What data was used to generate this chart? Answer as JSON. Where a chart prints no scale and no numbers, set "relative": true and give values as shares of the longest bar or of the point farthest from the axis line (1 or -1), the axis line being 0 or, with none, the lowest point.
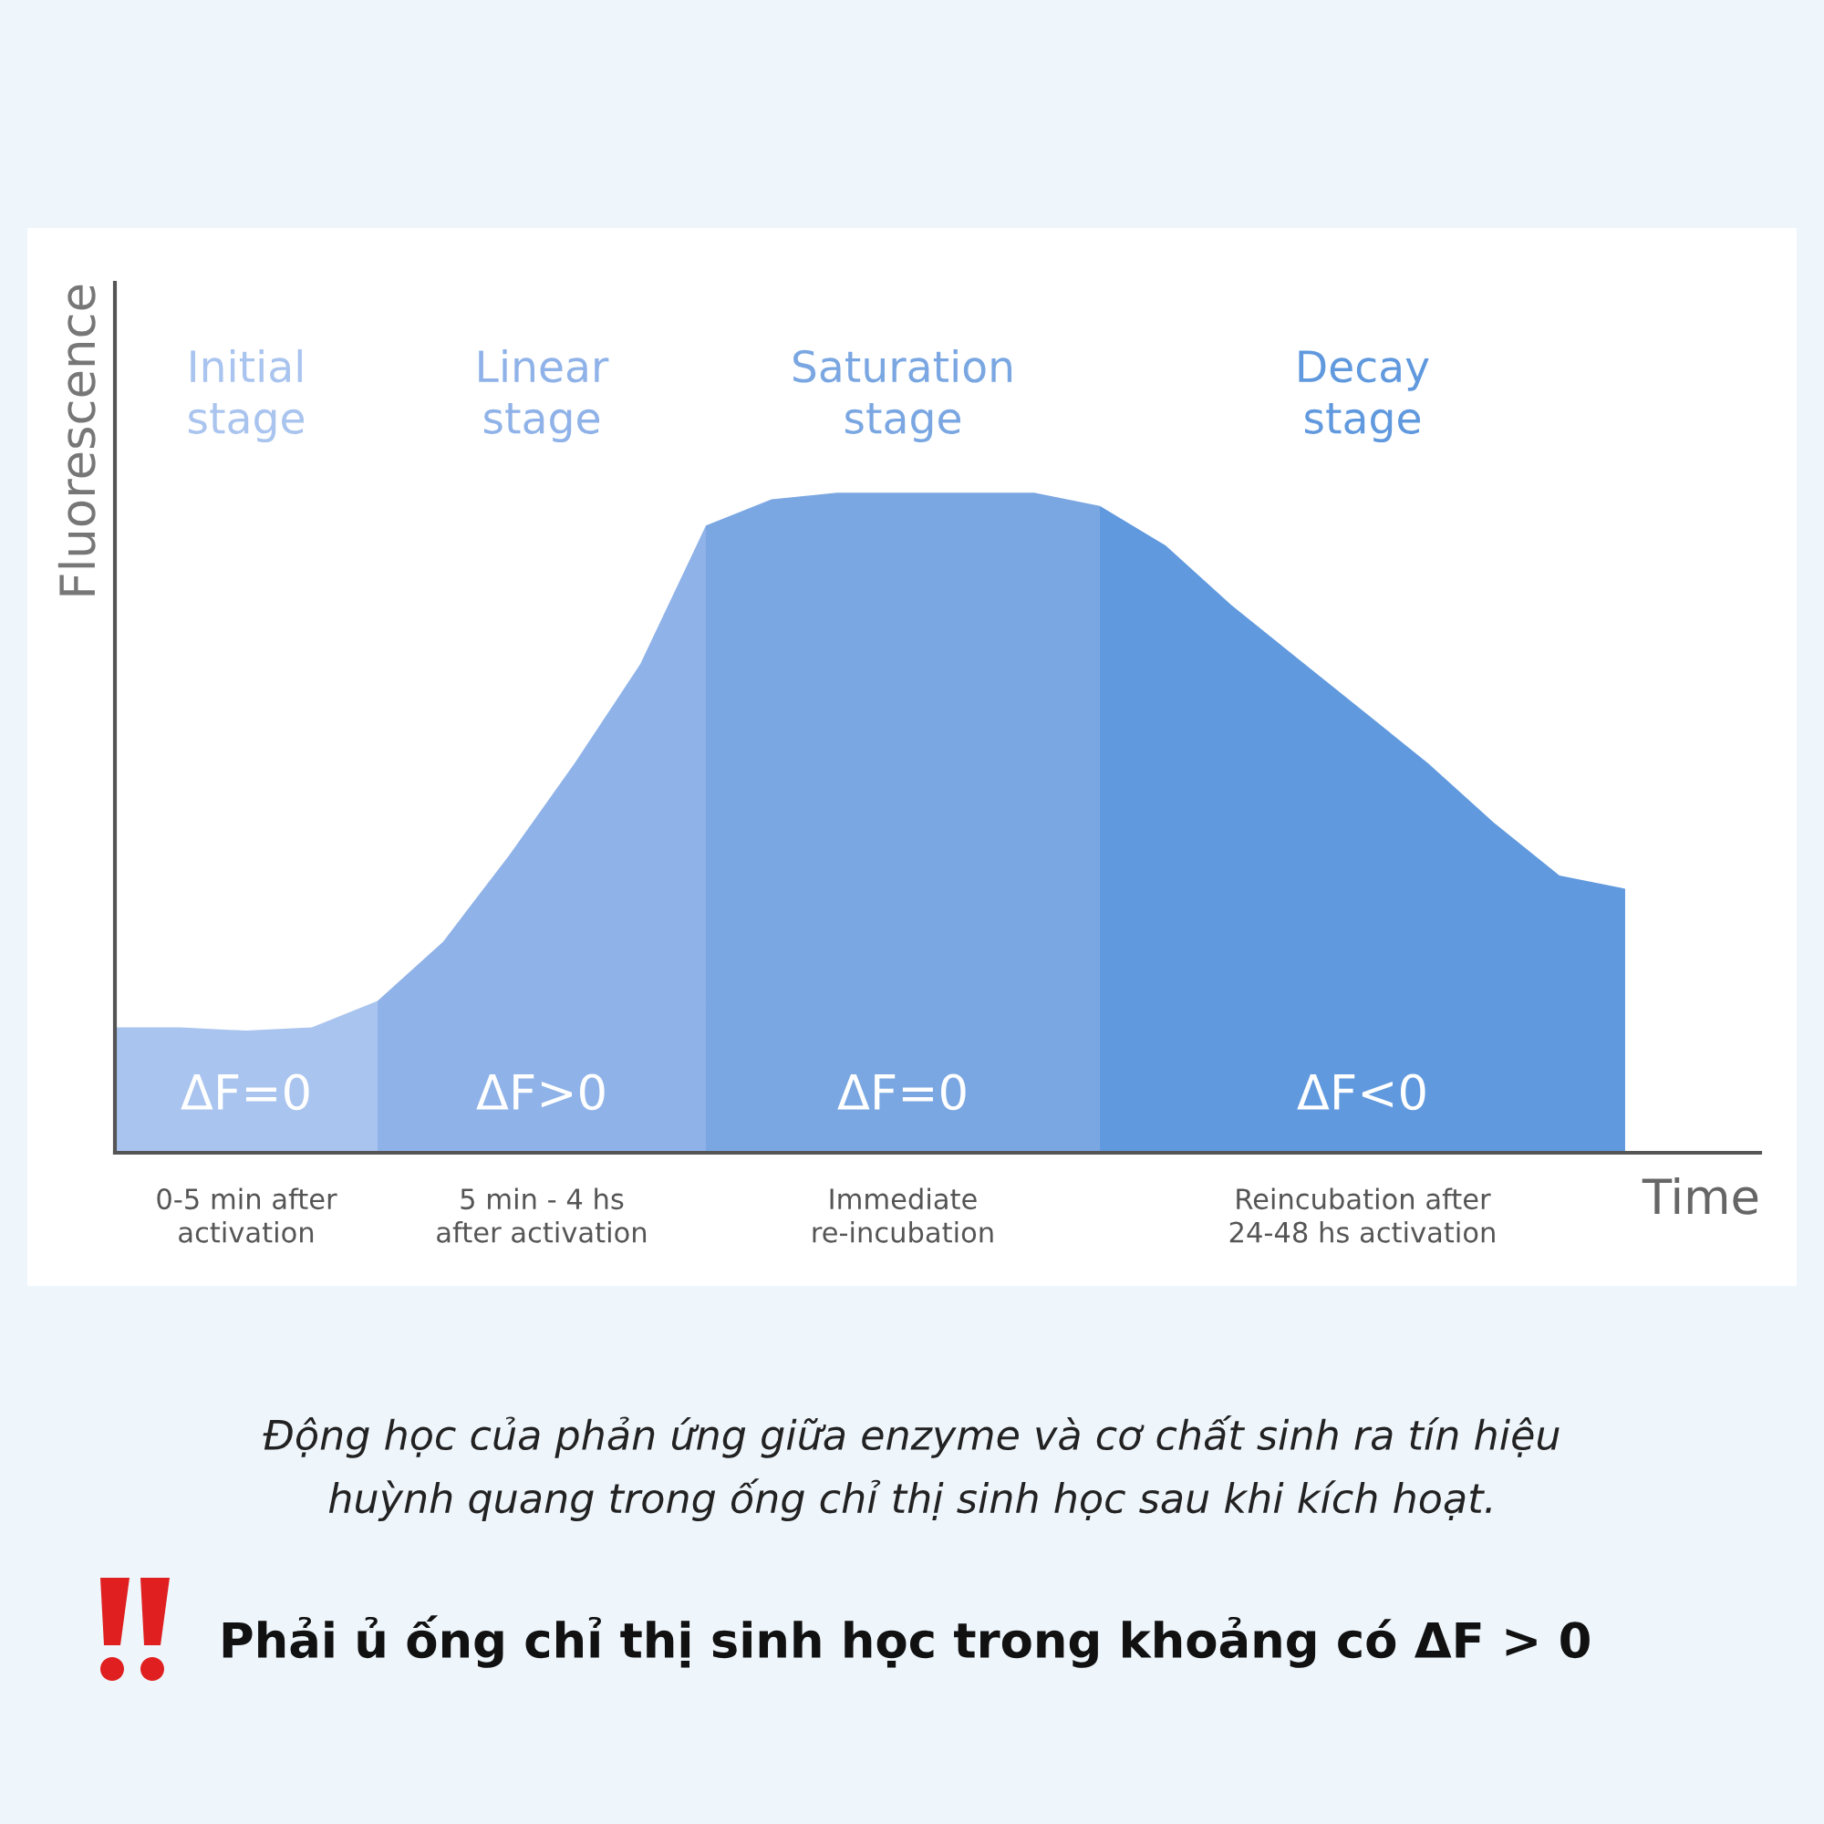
{
  "chart_data": {
    "type": "area",
    "relative": true,
    "ylabel": "Fluorescence",
    "xlabel": "Time",
    "categories": [
      null,
      null,
      null,
      null,
      null,
      null,
      null,
      null,
      null,
      null,
      null,
      null,
      null,
      null,
      null,
      null,
      null,
      null,
      null,
      null,
      null,
      null,
      null,
      null
    ],
    "series": [
      {
        "name": "Initial\nstage",
        "color": "#a9c4ee",
        "values": [
          0.19,
          0.19,
          0.185,
          0.19,
          0.23,
          null,
          null,
          null,
          null,
          null,
          null,
          null,
          null,
          null,
          null,
          null,
          null,
          null,
          null,
          null,
          null,
          null,
          null,
          null
        ]
      },
      {
        "name": "Linear\nstage",
        "color": "#8fb2e8",
        "values": [
          null,
          null,
          null,
          null,
          0.23,
          0.32,
          0.45,
          0.59,
          0.74,
          0.95,
          null,
          null,
          null,
          null,
          null,
          null,
          null,
          null,
          null,
          null,
          null,
          null,
          null,
          null
        ]
      },
      {
        "name": "Saturation\nstage",
        "color": "#7aa7e2",
        "values": [
          null,
          null,
          null,
          null,
          null,
          null,
          null,
          null,
          null,
          0.95,
          0.99,
          1.0,
          1.0,
          1.0,
          1.0,
          0.98,
          null,
          null,
          null,
          null,
          null,
          null,
          null,
          null
        ]
      },
      {
        "name": "Decay\nstage",
        "color": "#6099de",
        "values": [
          null,
          null,
          null,
          null,
          null,
          null,
          null,
          null,
          null,
          null,
          null,
          null,
          null,
          null,
          null,
          0.98,
          0.92,
          0.83,
          0.75,
          0.67,
          0.59,
          0.5,
          0.42,
          0.4
        ]
      }
    ],
    "annotations": [
      "ΔF=0",
      "ΔF>0",
      "ΔF=0",
      "ΔF<0",
      "0-5 min after\nactivation",
      "5 min - 4 hs\nafter activation",
      "Immediate\nre-incubation",
      "Reincubation after\n24-48 hs activation",
      "Động học của phản ứng giữa enzyme và cơ chất sinh ra tín hiệu\nhuỳnh quang trong ống chỉ thị sinh học sau khi kích hoạt.",
      "Phải ủ ống chỉ thị sinh học trong khoảng có ΔF > 0"
    ]
  }
}
